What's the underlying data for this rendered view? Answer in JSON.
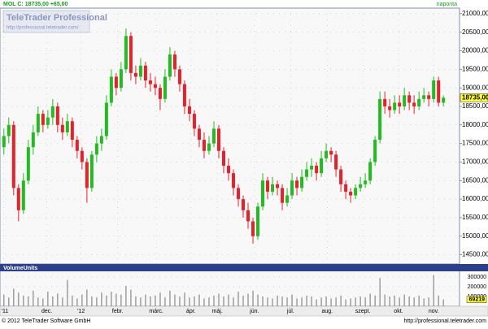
{
  "chart_data": {
    "type": "candlestick",
    "title": "MOL C: 18735,00 +65,00",
    "interval": "naponta",
    "watermark_title": "TeleTrader Professional",
    "watermark_url": "http://professional.teletrader.com/",
    "footer_left": "© 2012 TeleTrader Software GmbH",
    "footer_right": "http://professional.teletrader.com",
    "grid": true,
    "up_color": "#22bb22",
    "down_color": "#e8202a",
    "xlim": [
      -0.8,
      93.3
    ],
    "xticks": [
      {
        "value": 0,
        "label": "'11"
      },
      {
        "value": 8.8,
        "label": "dec."
      },
      {
        "value": 15.8,
        "label": "'12"
      },
      {
        "value": 23.3,
        "label": "febr."
      },
      {
        "value": 31.2,
        "label": "márc."
      },
      {
        "value": 38.3,
        "label": "ápr."
      },
      {
        "value": 43.7,
        "label": "máj."
      },
      {
        "value": 51.3,
        "label": "jún."
      },
      {
        "value": 58.7,
        "label": "júl."
      },
      {
        "value": 66.2,
        "label": "aug."
      },
      {
        "value": 73.5,
        "label": "szept."
      },
      {
        "value": 80.8,
        "label": "okt."
      },
      {
        "value": 88,
        "label": "nov."
      }
    ],
    "ylim": [
      14250,
      21150
    ],
    "yticks": [
      {
        "value": 14500,
        "label": "14500,00"
      },
      {
        "value": 15000,
        "label": "15000,00"
      },
      {
        "value": 15500,
        "label": "15500,00"
      },
      {
        "value": 16000,
        "label": "16000,00"
      },
      {
        "value": 16500,
        "label": "16500,00"
      },
      {
        "value": 17000,
        "label": "17000,00"
      },
      {
        "value": 17500,
        "label": "17500,00"
      },
      {
        "value": 18000,
        "label": "18000,00"
      },
      {
        "value": 18500,
        "label": "18500,00"
      },
      {
        "value": 19000,
        "label": "19000,00"
      },
      {
        "value": 19500,
        "label": "19500,00"
      },
      {
        "value": 20000,
        "label": "20000,00"
      },
      {
        "value": 20500,
        "label": "20500,00"
      },
      {
        "value": 21000,
        "label": "21000,00"
      }
    ],
    "last_price": {
      "value": 18735,
      "label": "18735,00"
    },
    "open": [
      17400,
      17700,
      18000,
      16300,
      15700,
      16500,
      17400,
      17800,
      18300,
      18000,
      18200,
      18500,
      18000,
      17800,
      18100,
      17600,
      17300,
      17000,
      16300,
      17200,
      17500,
      17700,
      18600,
      19300,
      19000,
      19500,
      20400,
      19400,
      19300,
      19600,
      19200,
      19100,
      19000,
      18700,
      19300,
      19900,
      19500,
      19100,
      18500,
      18300,
      17900,
      17600,
      17300,
      17500,
      17900,
      17300,
      16900,
      16700,
      16300,
      16000,
      15700,
      15400,
      15000,
      15800,
      16500,
      16200,
      16400,
      16300,
      15900,
      16100,
      16500,
      16300,
      16600,
      16800,
      16900,
      16700,
      17100,
      17300,
      17200,
      16800,
      16400,
      16200,
      16100,
      16300,
      16400,
      16500,
      17000,
      17600,
      18700,
      18500,
      18400,
      18600,
      18500,
      18800,
      18600,
      18500,
      18700,
      18800,
      18700,
      19200,
      18600
    ],
    "high": [
      17900,
      18200,
      18100,
      16400,
      16700,
      17600,
      18000,
      18500,
      18400,
      18400,
      18700,
      18600,
      18200,
      18300,
      18200,
      17700,
      17400,
      17100,
      17300,
      17700,
      17900,
      18800,
      19500,
      19400,
      19700,
      20600,
      20500,
      19600,
      19800,
      19700,
      19400,
      19300,
      19100,
      19500,
      20100,
      20000,
      19600,
      19200,
      18700,
      18400,
      18000,
      17800,
      17700,
      18100,
      18000,
      17400,
      17100,
      16800,
      16400,
      16100,
      15900,
      15500,
      15900,
      16700,
      16600,
      16600,
      16500,
      16400,
      16300,
      16700,
      16600,
      16800,
      17000,
      17100,
      17000,
      17300,
      17500,
      17400,
      17300,
      16900,
      16500,
      16300,
      16400,
      16600,
      16700,
      17100,
      17700,
      18900,
      18900,
      18700,
      18800,
      18800,
      19000,
      18900,
      18800,
      18900,
      19000,
      18900,
      19300,
      19300,
      18800
    ],
    "low": [
      17200,
      17500,
      16100,
      15400,
      15600,
      16400,
      17200,
      17700,
      17800,
      17900,
      18000,
      17800,
      17600,
      17700,
      17400,
      17100,
      16800,
      15900,
      16200,
      17000,
      17300,
      17600,
      18500,
      18800,
      18900,
      19400,
      19200,
      19100,
      19200,
      19000,
      18900,
      18800,
      18400,
      18600,
      19200,
      19300,
      18900,
      18300,
      18100,
      17700,
      17400,
      17100,
      17200,
      17400,
      17100,
      16700,
      16500,
      16100,
      15800,
      15500,
      15200,
      14800,
      14900,
      15700,
      16000,
      16100,
      16100,
      15700,
      15800,
      16000,
      16100,
      16200,
      16500,
      16600,
      16500,
      16600,
      17000,
      17000,
      16600,
      16200,
      16000,
      15900,
      16000,
      16200,
      16300,
      16400,
      16900,
      17500,
      18300,
      18200,
      18300,
      18300,
      18400,
      18400,
      18300,
      18400,
      18600,
      18500,
      18600,
      18500,
      18500
    ],
    "close": [
      17700,
      18000,
      16300,
      15700,
      16500,
      17400,
      17800,
      18300,
      18000,
      18200,
      18500,
      18000,
      17800,
      18100,
      17600,
      17300,
      17000,
      16300,
      17200,
      17500,
      17700,
      18600,
      19300,
      19000,
      19500,
      20400,
      19400,
      19300,
      19600,
      19200,
      19100,
      19000,
      18700,
      19300,
      19900,
      19500,
      19100,
      18500,
      18300,
      17900,
      17600,
      17300,
      17500,
      17900,
      17300,
      16900,
      16700,
      16300,
      16000,
      15700,
      15400,
      15000,
      15800,
      16500,
      16200,
      16400,
      16300,
      15900,
      16100,
      16500,
      16300,
      16600,
      16800,
      16900,
      16700,
      17100,
      17300,
      17200,
      16800,
      16400,
      16200,
      16100,
      16300,
      16400,
      16500,
      17000,
      17600,
      18700,
      18500,
      18400,
      18600,
      18500,
      18800,
      18600,
      18500,
      18700,
      18800,
      18700,
      19200,
      18600,
      18735
    ],
    "volume": {
      "title": "VolumeUnits",
      "color": "#888888",
      "ylim": [
        0,
        358000
      ],
      "yticks": [
        100000,
        200000,
        300000
      ],
      "values": [
        120000,
        90000,
        180000,
        140000,
        110000,
        100000,
        160000,
        90000,
        80000,
        150000,
        100000,
        130000,
        90000,
        270000,
        110000,
        80000,
        120000,
        170000,
        100000,
        90000,
        140000,
        110000,
        150000,
        130000,
        120000,
        210000,
        170000,
        100000,
        90000,
        120000,
        100000,
        110000,
        140000,
        90000,
        160000,
        120000,
        100000,
        140000,
        90000,
        100000,
        120000,
        80000,
        90000,
        110000,
        130000,
        100000,
        120000,
        90000,
        150000,
        110000,
        130000,
        160000,
        120000,
        100000,
        90000,
        80000,
        110000,
        100000,
        90000,
        120000,
        80000,
        90000,
        110000,
        100000,
        70000,
        90000,
        100000,
        80000,
        90000,
        110000,
        70000,
        80000,
        90000,
        100000,
        90000,
        130000,
        110000,
        290000,
        120000,
        100000,
        110000,
        90000,
        120000,
        100000,
        90000,
        110000,
        80000,
        90000,
        320000,
        110000,
        69219
      ]
    }
  }
}
